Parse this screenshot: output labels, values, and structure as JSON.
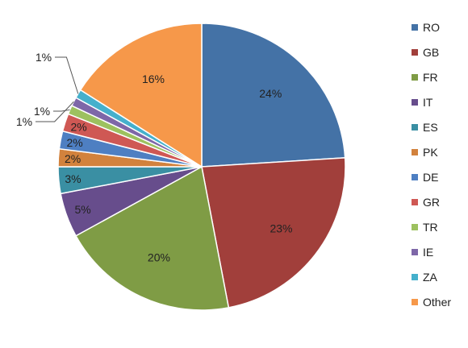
{
  "chart_data": {
    "type": "pie",
    "start_angle_deg": 0,
    "direction": "clockwise",
    "legend_position": "right",
    "slices": [
      {
        "label": "RO",
        "value": 24,
        "display": "24%",
        "color": "#4472A6"
      },
      {
        "label": "GB",
        "value": 23,
        "display": "23%",
        "color": "#A13F3B"
      },
      {
        "label": "FR",
        "value": 20,
        "display": "20%",
        "color": "#7F9C45"
      },
      {
        "label": "IT",
        "value": 5,
        "display": "5%",
        "color": "#674D8C"
      },
      {
        "label": "ES",
        "value": 3,
        "display": "3%",
        "color": "#3A8FA3"
      },
      {
        "label": "PK",
        "value": 2,
        "display": "2%",
        "color": "#D2823D"
      },
      {
        "label": "DE",
        "value": 2,
        "display": "2%",
        "color": "#4E7FC2"
      },
      {
        "label": "GR",
        "value": 2,
        "display": "2%",
        "color": "#CF5854"
      },
      {
        "label": "TR",
        "value": 1,
        "display": "1%",
        "color": "#9DC15F"
      },
      {
        "label": "IE",
        "value": 1,
        "display": "1%",
        "color": "#7E67A8"
      },
      {
        "label": "ZA",
        "value": 1,
        "display": "1%",
        "color": "#45B0CC"
      },
      {
        "label": "Other",
        "value": 16,
        "display": "16%",
        "color": "#F6984A"
      }
    ]
  }
}
